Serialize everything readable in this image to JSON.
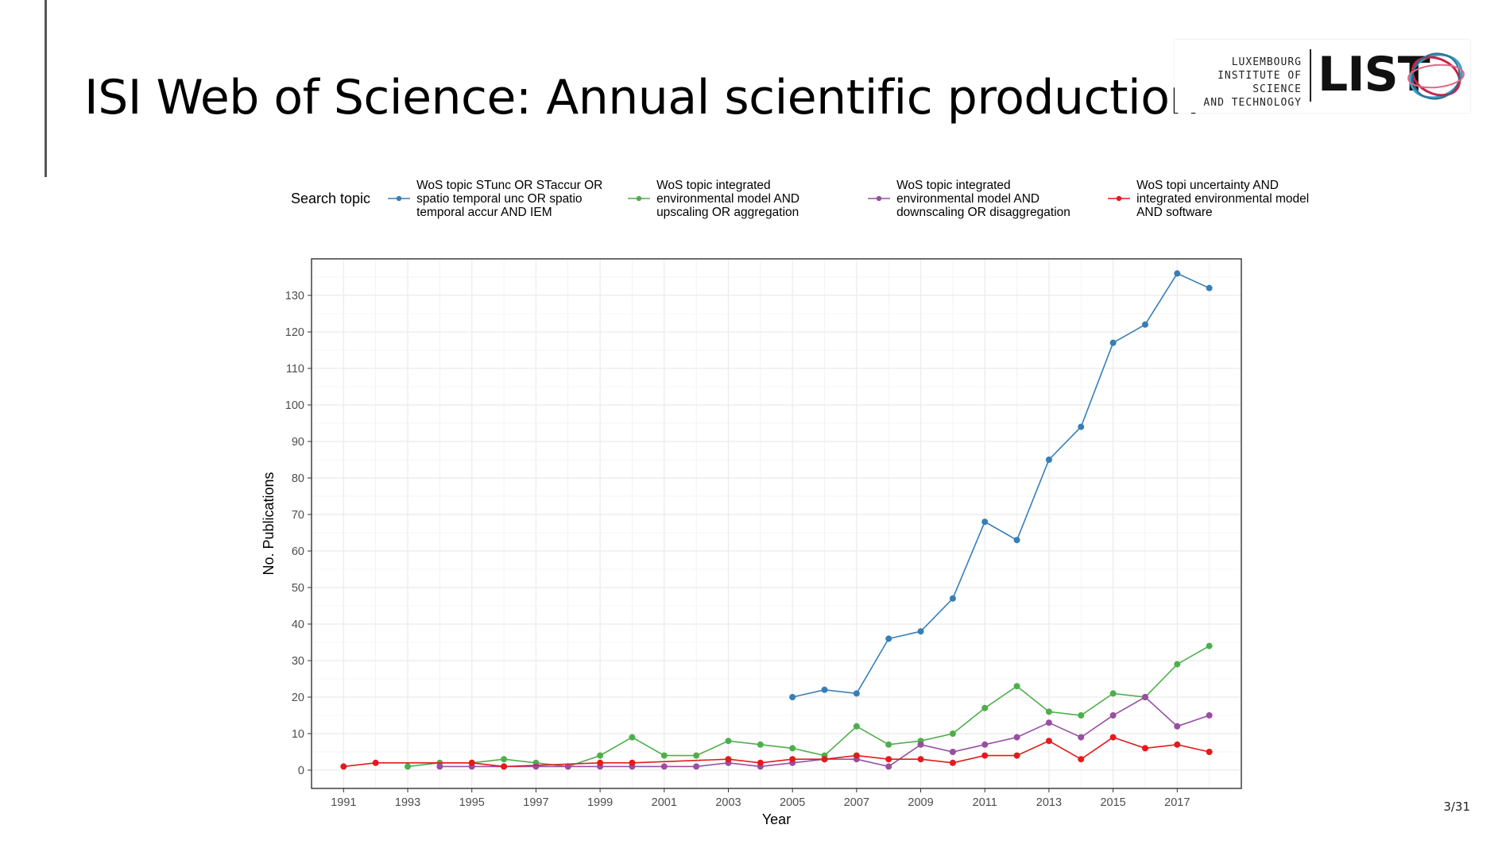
{
  "slide": {
    "title": "ISI Web of Science: Annual scientific production",
    "page_number": "3/31"
  },
  "logo": {
    "lines": [
      "LUXEMBOURG",
      "INSTITUTE OF SCIENCE",
      "AND TECHNOLOGY"
    ],
    "word": "LIST"
  },
  "colors": {
    "blue": "#377eb8",
    "green": "#4daf4a",
    "purple": "#984ea3",
    "red": "#e41a1c",
    "grid": "#ebebeb",
    "axis": "#333333"
  },
  "chart_data": {
    "type": "line",
    "xlabel": "Year",
    "ylabel": "No. Publications",
    "legend_title": "Search topic",
    "legend_position": "top",
    "grid": true,
    "xlim": [
      1990,
      2019
    ],
    "ylim": [
      -5,
      140
    ],
    "x_ticks": [
      1991,
      1993,
      1995,
      1997,
      1999,
      2001,
      2003,
      2005,
      2007,
      2009,
      2011,
      2013,
      2015,
      2017
    ],
    "y_ticks": [
      0,
      10,
      20,
      30,
      40,
      50,
      60,
      70,
      80,
      90,
      100,
      110,
      120,
      130
    ],
    "series": [
      {
        "name": "WoS topic STunc OR STaccur OR spatio temporal unc OR spatio temporal accur AND IEM",
        "color": "#377eb8",
        "points": [
          [
            2005,
            20
          ],
          [
            2006,
            22
          ],
          [
            2007,
            21
          ],
          [
            2008,
            36
          ],
          [
            2009,
            38
          ],
          [
            2010,
            47
          ],
          [
            2011,
            68
          ],
          [
            2012,
            63
          ],
          [
            2013,
            85
          ],
          [
            2014,
            94
          ],
          [
            2015,
            117
          ],
          [
            2016,
            122
          ],
          [
            2017,
            136
          ],
          [
            2018,
            132
          ]
        ]
      },
      {
        "name": "WoS topic integrated environmental model AND upscaling OR aggregation",
        "color": "#4daf4a",
        "points": [
          [
            1993,
            1
          ],
          [
            1994,
            2
          ],
          [
            1995,
            2
          ],
          [
            1996,
            3
          ],
          [
            1997,
            2
          ],
          [
            1998,
            1
          ],
          [
            1999,
            4
          ],
          [
            2000,
            9
          ],
          [
            2001,
            4
          ],
          [
            2002,
            4
          ],
          [
            2003,
            8
          ],
          [
            2004,
            7
          ],
          [
            2005,
            6
          ],
          [
            2006,
            4
          ],
          [
            2007,
            12
          ],
          [
            2008,
            7
          ],
          [
            2009,
            8
          ],
          [
            2010,
            10
          ],
          [
            2011,
            17
          ],
          [
            2012,
            23
          ],
          [
            2013,
            16
          ],
          [
            2014,
            15
          ],
          [
            2015,
            21
          ],
          [
            2016,
            20
          ],
          [
            2017,
            29
          ],
          [
            2018,
            34
          ]
        ]
      },
      {
        "name": "WoS topic integrated environmental model AND downscaling OR disaggregation",
        "color": "#984ea3",
        "points": [
          [
            1994,
            1
          ],
          [
            1995,
            1
          ],
          [
            1996,
            1
          ],
          [
            1997,
            1
          ],
          [
            1998,
            1
          ],
          [
            1999,
            1
          ],
          [
            2000,
            1
          ],
          [
            2001,
            1
          ],
          [
            2002,
            1
          ],
          [
            2003,
            2
          ],
          [
            2004,
            1
          ],
          [
            2005,
            2
          ],
          [
            2006,
            3
          ],
          [
            2007,
            3
          ],
          [
            2008,
            1
          ],
          [
            2009,
            7
          ],
          [
            2010,
            5
          ],
          [
            2011,
            7
          ],
          [
            2012,
            9
          ],
          [
            2013,
            13
          ],
          [
            2014,
            9
          ],
          [
            2015,
            15
          ],
          [
            2016,
            20
          ],
          [
            2017,
            12
          ],
          [
            2018,
            15
          ]
        ]
      },
      {
        "name": "WoS topi uncertainty AND integrated environmental model AND software",
        "color": "#e41a1c",
        "points": [
          [
            1991,
            1
          ],
          [
            1992,
            2
          ],
          [
            1995,
            2
          ],
          [
            1996,
            1
          ],
          [
            1999,
            2
          ],
          [
            2000,
            2
          ],
          [
            2003,
            3
          ],
          [
            2004,
            2
          ],
          [
            2005,
            3
          ],
          [
            2006,
            3
          ],
          [
            2007,
            4
          ],
          [
            2008,
            3
          ],
          [
            2009,
            3
          ],
          [
            2010,
            2
          ],
          [
            2011,
            4
          ],
          [
            2012,
            4
          ],
          [
            2013,
            8
          ],
          [
            2014,
            3
          ],
          [
            2015,
            9
          ],
          [
            2016,
            6
          ],
          [
            2017,
            7
          ],
          [
            2018,
            5
          ]
        ]
      }
    ]
  }
}
